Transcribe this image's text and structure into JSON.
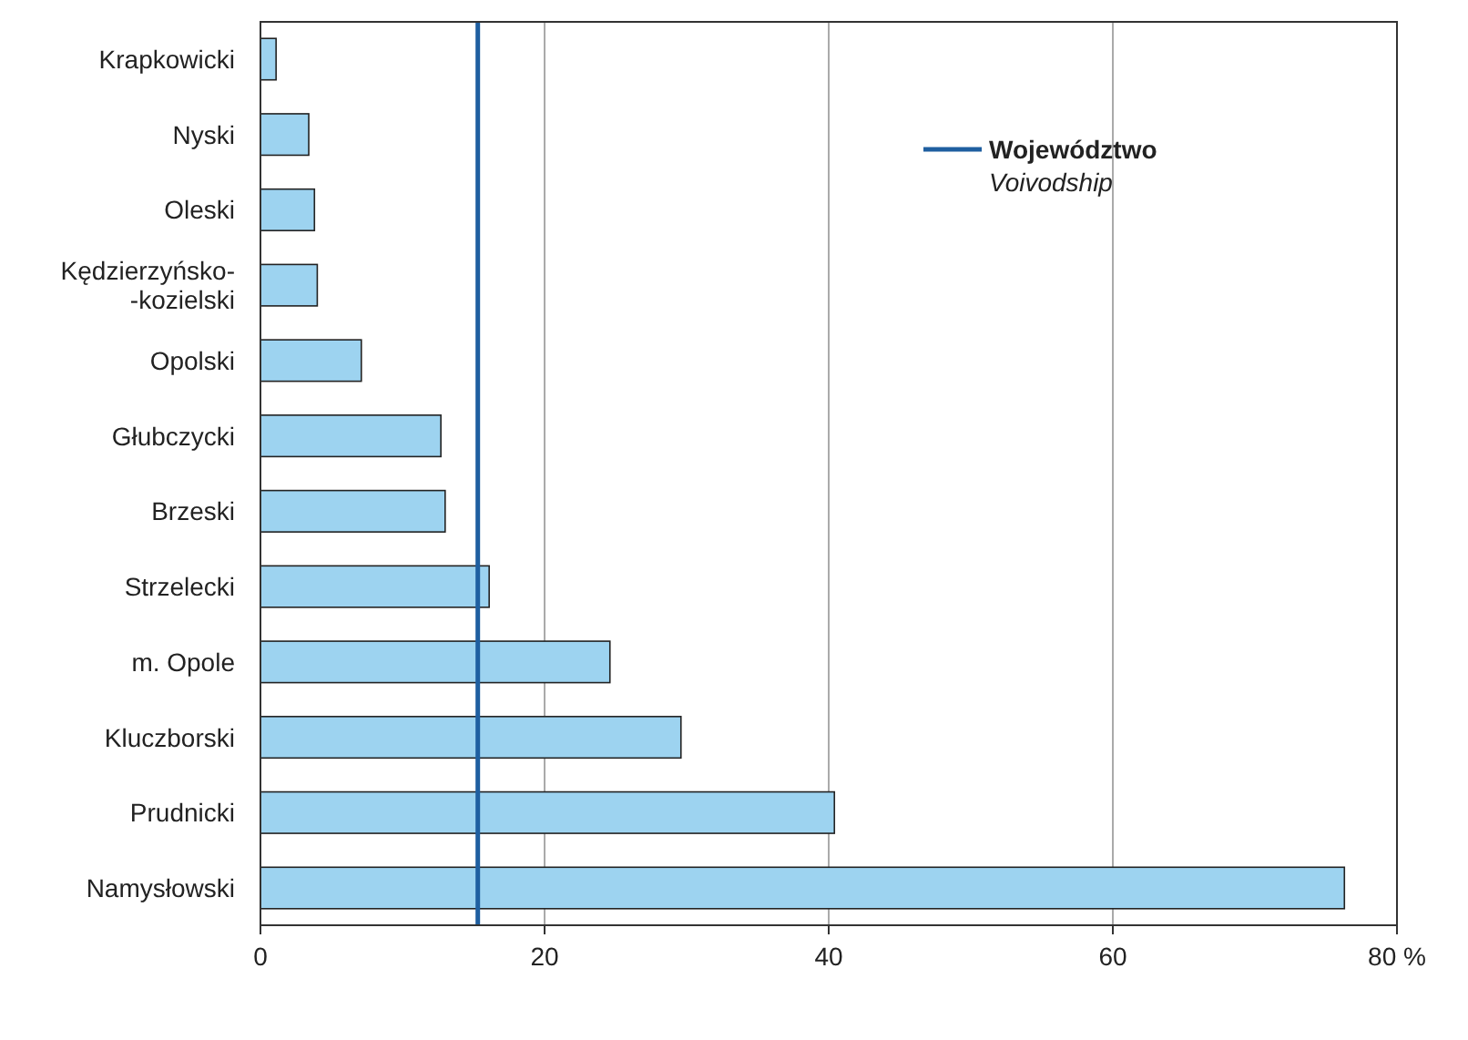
{
  "chart_data": {
    "type": "bar",
    "orientation": "horizontal",
    "categories": [
      "Krapkowicki",
      "Nyski",
      "Oleski",
      "Kędzierzyńsko-\n-kozielski",
      "Opolski",
      "Głubczycki",
      "Brzeski",
      "Strzelecki",
      "m. Opole",
      "Kluczborski",
      "Prudnicki",
      "Namysłowski"
    ],
    "values": [
      1.1,
      3.4,
      3.8,
      4.0,
      7.1,
      12.7,
      13.0,
      16.1,
      24.6,
      29.6,
      40.4,
      76.3
    ],
    "color": "#9dd3f0",
    "xlim": [
      0,
      80
    ],
    "xticks": [
      0,
      20,
      40,
      60,
      {
        "value": 80,
        "label": "80 %"
      }
    ],
    "grid": "x",
    "ref_lines": [
      {
        "axis": "x",
        "value": 15.3,
        "color": "#1f5fa0"
      }
    ],
    "annotations": [
      "Województwo",
      "Voivodship"
    ]
  }
}
